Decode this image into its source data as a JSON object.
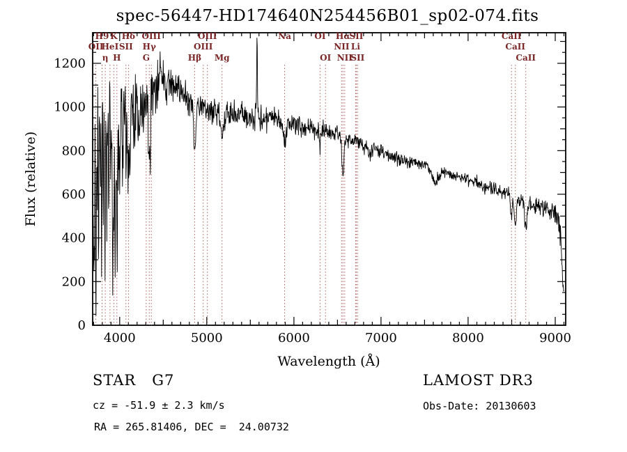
{
  "window": {
    "background": "#ffffff"
  },
  "chart_data": {
    "type": "line",
    "title": "spec-56447-HD174640N254456B01_sp02-074.fits",
    "xlabel": "Wavelength (Å)",
    "ylabel": "Flux (relative)",
    "xlim": [
      3690,
      9120
    ],
    "ylim": [
      0,
      1340
    ],
    "x_major_ticks": [
      4000,
      5000,
      6000,
      7000,
      8000,
      9000
    ],
    "x_minor_step": 100,
    "y_major_ticks": [
      0,
      200,
      400,
      600,
      800,
      1000,
      1200
    ],
    "y_minor_step": 50,
    "grid": false,
    "legend": "none",
    "line_color": "#000000",
    "marker_line_color": "#b05c5c",
    "marker_label_color": "#7a2525",
    "line_markers": [
      {
        "label": "H9",
        "wavelength": 3798,
        "row": 1
      },
      {
        "label": "K",
        "wavelength": 3933,
        "row": 1
      },
      {
        "label": "Hδ",
        "wavelength": 4101,
        "row": 1
      },
      {
        "label": "OIII",
        "wavelength": 4363,
        "row": 1
      },
      {
        "label": "OIII",
        "wavelength": 5007,
        "row": 1
      },
      {
        "label": "Na",
        "wavelength": 5893,
        "row": 1
      },
      {
        "label": "OI",
        "wavelength": 6300,
        "row": 1
      },
      {
        "label": "Hα",
        "wavelength": 6563,
        "row": 1
      },
      {
        "label": "SII",
        "wavelength": 6716,
        "row": 1
      },
      {
        "label": "CaII",
        "wavelength": 8498,
        "row": 1
      },
      {
        "label": "OII",
        "wavelength": 3727,
        "row": 2
      },
      {
        "label": "HeI",
        "wavelength": 3889,
        "row": 2
      },
      {
        "label": "SII",
        "wavelength": 4072,
        "row": 2
      },
      {
        "label": "Hγ",
        "wavelength": 4340,
        "row": 2
      },
      {
        "label": "OIII",
        "wavelength": 4959,
        "row": 2
      },
      {
        "label": "NII",
        "wavelength": 6548,
        "row": 2
      },
      {
        "label": "Li",
        "wavelength": 6708,
        "row": 2
      },
      {
        "label": "CaII",
        "wavelength": 8542,
        "row": 2
      },
      {
        "label": "η",
        "wavelength": 3835,
        "row": 3
      },
      {
        "label": "H",
        "wavelength": 3968,
        "row": 3
      },
      {
        "label": "G",
        "wavelength": 4305,
        "row": 3
      },
      {
        "label": "Hβ",
        "wavelength": 4861,
        "row": 3
      },
      {
        "label": "Mg",
        "wavelength": 5175,
        "row": 3
      },
      {
        "label": "OI",
        "wavelength": 6363,
        "row": 3
      },
      {
        "label": "NII",
        "wavelength": 6583,
        "row": 3
      },
      {
        "label": "SII",
        "wavelength": 6731,
        "row": 3
      },
      {
        "label": "CaII",
        "wavelength": 8662,
        "row": 3
      }
    ],
    "spectrum": {
      "continuum": [
        [
          3690,
          420
        ],
        [
          3705,
          750
        ],
        [
          3720,
          880
        ],
        [
          3740,
          920
        ],
        [
          3760,
          930
        ],
        [
          3800,
          940
        ],
        [
          3850,
          950
        ],
        [
          3900,
          950
        ],
        [
          3950,
          955
        ],
        [
          4000,
          965
        ],
        [
          4050,
          975
        ],
        [
          4100,
          985
        ],
        [
          4150,
          995
        ],
        [
          4200,
          1005
        ],
        [
          4250,
          1025
        ],
        [
          4300,
          1055
        ],
        [
          4350,
          1075
        ],
        [
          4400,
          1095
        ],
        [
          4450,
          1115
        ],
        [
          4500,
          1125
        ],
        [
          4550,
          1115
        ],
        [
          4600,
          1100
        ],
        [
          4650,
          1090
        ],
        [
          4700,
          1070
        ],
        [
          4750,
          1050
        ],
        [
          4800,
          1030
        ],
        [
          4850,
          1015
        ],
        [
          4900,
          1005
        ],
        [
          4950,
          1000
        ],
        [
          5000,
          990
        ],
        [
          5100,
          980
        ],
        [
          5200,
          972
        ],
        [
          5300,
          966
        ],
        [
          5400,
          960
        ],
        [
          5500,
          955
        ],
        [
          5600,
          950
        ],
        [
          5700,
          946
        ],
        [
          5800,
          940
        ],
        [
          5900,
          932
        ],
        [
          6000,
          922
        ],
        [
          6100,
          912
        ],
        [
          6200,
          902
        ],
        [
          6300,
          892
        ],
        [
          6400,
          882
        ],
        [
          6500,
          870
        ],
        [
          6600,
          856
        ],
        [
          6700,
          842
        ],
        [
          6800,
          826
        ],
        [
          6900,
          810
        ],
        [
          7000,
          794
        ],
        [
          7100,
          778
        ],
        [
          7200,
          764
        ],
        [
          7300,
          754
        ],
        [
          7400,
          746
        ],
        [
          7500,
          738
        ],
        [
          7600,
          722
        ],
        [
          7700,
          712
        ],
        [
          7800,
          698
        ],
        [
          7900,
          682
        ],
        [
          8000,
          666
        ],
        [
          8100,
          650
        ],
        [
          8200,
          636
        ],
        [
          8300,
          622
        ],
        [
          8400,
          608
        ],
        [
          8500,
          592
        ],
        [
          8600,
          576
        ],
        [
          8700,
          560
        ],
        [
          8800,
          544
        ],
        [
          8900,
          526
        ],
        [
          9000,
          506
        ],
        [
          9030,
          490
        ],
        [
          9060,
          420
        ],
        [
          9080,
          260
        ],
        [
          9100,
          120
        ]
      ],
      "noise_profile": [
        [
          3690,
          300
        ],
        [
          3780,
          250
        ],
        [
          3920,
          190
        ],
        [
          4080,
          150
        ],
        [
          4250,
          115
        ],
        [
          4450,
          100
        ],
        [
          4700,
          70
        ],
        [
          5000,
          58
        ],
        [
          5400,
          50
        ],
        [
          5900,
          44
        ],
        [
          6300,
          38
        ],
        [
          6800,
          31
        ],
        [
          7300,
          27
        ],
        [
          7900,
          26
        ],
        [
          8400,
          30
        ],
        [
          8900,
          36
        ],
        [
          9100,
          55
        ]
      ],
      "absorption_lines": [
        [
          3933,
          350,
          14
        ],
        [
          3968,
          300,
          14
        ],
        [
          4101,
          260,
          12
        ],
        [
          4340,
          250,
          12
        ],
        [
          4861,
          220,
          12
        ],
        [
          5175,
          110,
          20
        ],
        [
          5893,
          110,
          14
        ],
        [
          6300,
          60,
          8
        ],
        [
          6563,
          170,
          12
        ],
        [
          6870,
          45,
          12
        ],
        [
          7620,
          70,
          35
        ],
        [
          8498,
          100,
          10
        ],
        [
          8542,
          140,
          12
        ],
        [
          8662,
          120,
          12
        ]
      ],
      "emission_lines": [
        [
          5577,
          345,
          5
        ]
      ],
      "down_spikes": [
        [
          3700,
          520
        ],
        [
          3712,
          820
        ],
        [
          3726,
          960
        ],
        [
          3741,
          720
        ],
        [
          3757,
          860
        ],
        [
          3774,
          620
        ],
        [
          3791,
          760
        ],
        [
          3811,
          660
        ],
        [
          3831,
          800
        ],
        [
          3852,
          600
        ],
        [
          3875,
          700
        ],
        [
          3897,
          560
        ],
        [
          3921,
          640
        ],
        [
          3947,
          460
        ],
        [
          3971,
          600
        ],
        [
          4001,
          420
        ],
        [
          4034,
          360
        ],
        [
          4073,
          380
        ],
        [
          4118,
          300
        ],
        [
          4169,
          260
        ],
        [
          4228,
          210
        ],
        [
          4288,
          180
        ],
        [
          4352,
          150
        ],
        [
          4430,
          130
        ]
      ],
      "sample_step": 4
    }
  },
  "annotations": {
    "object_class": "STAR   G7",
    "cz": "cz = -51.9 ± 2.3 km/s",
    "ra_dec": "RA = 265.81406, DEC =  24.00732",
    "survey": "LAMOST DR3",
    "obs_date": "Obs-Date: 20130603"
  }
}
